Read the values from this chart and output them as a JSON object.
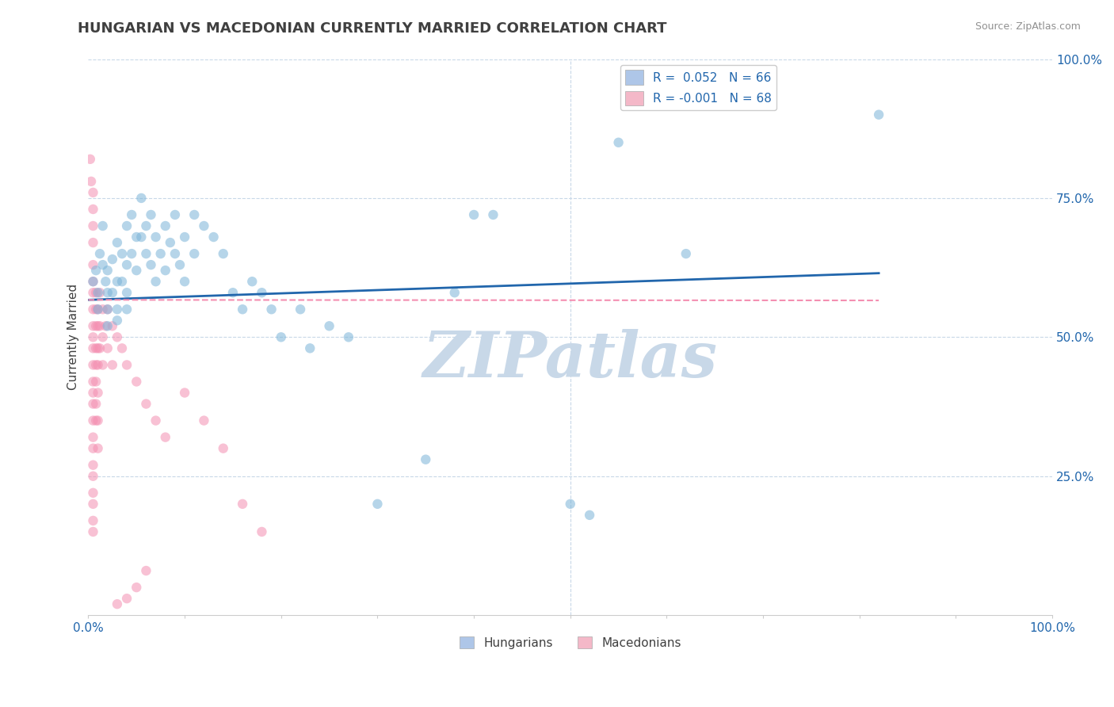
{
  "title": "HUNGARIAN VS MACEDONIAN CURRENTLY MARRIED CORRELATION CHART",
  "source": "Source: ZipAtlas.com",
  "ylabel": "Currently Married",
  "watermark": "ZIPatlas",
  "xlim": [
    0.0,
    1.0
  ],
  "ylim": [
    0.0,
    1.0
  ],
  "xticks": [
    0.0,
    0.1,
    0.2,
    0.3,
    0.4,
    0.5,
    0.6,
    0.7,
    0.8,
    0.9,
    1.0
  ],
  "xticklabels_outer": {
    "0.0": "0.0%",
    "1.0": "100.0%"
  },
  "yticks_right": [
    0.25,
    0.5,
    0.75,
    1.0
  ],
  "yticklabels_right": [
    "25.0%",
    "50.0%",
    "75.0%",
    "100.0%"
  ],
  "blue_scatter": [
    [
      0.005,
      0.6
    ],
    [
      0.008,
      0.62
    ],
    [
      0.01,
      0.58
    ],
    [
      0.01,
      0.55
    ],
    [
      0.012,
      0.65
    ],
    [
      0.015,
      0.63
    ],
    [
      0.015,
      0.7
    ],
    [
      0.018,
      0.6
    ],
    [
      0.02,
      0.58
    ],
    [
      0.02,
      0.62
    ],
    [
      0.02,
      0.55
    ],
    [
      0.02,
      0.52
    ],
    [
      0.025,
      0.64
    ],
    [
      0.025,
      0.58
    ],
    [
      0.03,
      0.67
    ],
    [
      0.03,
      0.6
    ],
    [
      0.03,
      0.55
    ],
    [
      0.03,
      0.53
    ],
    [
      0.035,
      0.65
    ],
    [
      0.035,
      0.6
    ],
    [
      0.04,
      0.7
    ],
    [
      0.04,
      0.63
    ],
    [
      0.04,
      0.58
    ],
    [
      0.04,
      0.55
    ],
    [
      0.045,
      0.72
    ],
    [
      0.045,
      0.65
    ],
    [
      0.05,
      0.68
    ],
    [
      0.05,
      0.62
    ],
    [
      0.055,
      0.75
    ],
    [
      0.055,
      0.68
    ],
    [
      0.06,
      0.7
    ],
    [
      0.06,
      0.65
    ],
    [
      0.065,
      0.72
    ],
    [
      0.065,
      0.63
    ],
    [
      0.07,
      0.68
    ],
    [
      0.07,
      0.6
    ],
    [
      0.075,
      0.65
    ],
    [
      0.08,
      0.7
    ],
    [
      0.08,
      0.62
    ],
    [
      0.085,
      0.67
    ],
    [
      0.09,
      0.72
    ],
    [
      0.09,
      0.65
    ],
    [
      0.095,
      0.63
    ],
    [
      0.1,
      0.68
    ],
    [
      0.1,
      0.6
    ],
    [
      0.11,
      0.72
    ],
    [
      0.11,
      0.65
    ],
    [
      0.12,
      0.7
    ],
    [
      0.13,
      0.68
    ],
    [
      0.14,
      0.65
    ],
    [
      0.15,
      0.58
    ],
    [
      0.16,
      0.55
    ],
    [
      0.17,
      0.6
    ],
    [
      0.18,
      0.58
    ],
    [
      0.19,
      0.55
    ],
    [
      0.2,
      0.5
    ],
    [
      0.22,
      0.55
    ],
    [
      0.23,
      0.48
    ],
    [
      0.25,
      0.52
    ],
    [
      0.27,
      0.5
    ],
    [
      0.3,
      0.2
    ],
    [
      0.35,
      0.28
    ],
    [
      0.38,
      0.58
    ],
    [
      0.4,
      0.72
    ],
    [
      0.42,
      0.72
    ],
    [
      0.5,
      0.2
    ],
    [
      0.52,
      0.18
    ],
    [
      0.55,
      0.85
    ],
    [
      0.62,
      0.65
    ],
    [
      0.82,
      0.9
    ]
  ],
  "pink_scatter": [
    [
      0.002,
      0.82
    ],
    [
      0.003,
      0.78
    ],
    [
      0.005,
      0.76
    ],
    [
      0.005,
      0.73
    ],
    [
      0.005,
      0.7
    ],
    [
      0.005,
      0.67
    ],
    [
      0.005,
      0.63
    ],
    [
      0.005,
      0.6
    ],
    [
      0.005,
      0.58
    ],
    [
      0.005,
      0.55
    ],
    [
      0.005,
      0.52
    ],
    [
      0.005,
      0.5
    ],
    [
      0.005,
      0.48
    ],
    [
      0.005,
      0.45
    ],
    [
      0.005,
      0.42
    ],
    [
      0.005,
      0.4
    ],
    [
      0.005,
      0.38
    ],
    [
      0.005,
      0.35
    ],
    [
      0.005,
      0.32
    ],
    [
      0.005,
      0.3
    ],
    [
      0.005,
      0.27
    ],
    [
      0.005,
      0.25
    ],
    [
      0.005,
      0.22
    ],
    [
      0.005,
      0.2
    ],
    [
      0.005,
      0.17
    ],
    [
      0.005,
      0.15
    ],
    [
      0.008,
      0.58
    ],
    [
      0.008,
      0.55
    ],
    [
      0.008,
      0.52
    ],
    [
      0.008,
      0.48
    ],
    [
      0.008,
      0.45
    ],
    [
      0.008,
      0.42
    ],
    [
      0.008,
      0.38
    ],
    [
      0.008,
      0.35
    ],
    [
      0.01,
      0.55
    ],
    [
      0.01,
      0.52
    ],
    [
      0.01,
      0.48
    ],
    [
      0.01,
      0.45
    ],
    [
      0.01,
      0.4
    ],
    [
      0.01,
      0.35
    ],
    [
      0.01,
      0.3
    ],
    [
      0.012,
      0.58
    ],
    [
      0.012,
      0.52
    ],
    [
      0.012,
      0.48
    ],
    [
      0.015,
      0.55
    ],
    [
      0.015,
      0.5
    ],
    [
      0.015,
      0.45
    ],
    [
      0.018,
      0.52
    ],
    [
      0.02,
      0.55
    ],
    [
      0.02,
      0.48
    ],
    [
      0.025,
      0.52
    ],
    [
      0.025,
      0.45
    ],
    [
      0.03,
      0.5
    ],
    [
      0.035,
      0.48
    ],
    [
      0.04,
      0.45
    ],
    [
      0.05,
      0.42
    ],
    [
      0.06,
      0.38
    ],
    [
      0.07,
      0.35
    ],
    [
      0.08,
      0.32
    ],
    [
      0.1,
      0.4
    ],
    [
      0.12,
      0.35
    ],
    [
      0.14,
      0.3
    ],
    [
      0.16,
      0.2
    ],
    [
      0.18,
      0.15
    ],
    [
      0.06,
      0.08
    ],
    [
      0.05,
      0.05
    ],
    [
      0.04,
      0.03
    ],
    [
      0.03,
      0.02
    ]
  ],
  "blue_line": {
    "x": [
      0.0,
      0.82
    ],
    "y": [
      0.567,
      0.615
    ]
  },
  "pink_line": {
    "x": [
      0.0,
      0.82
    ],
    "y": [
      0.567,
      0.566
    ]
  },
  "blue_color": "#7ab4d8",
  "pink_color": "#f48fb1",
  "blue_line_color": "#2166ac",
  "pink_line_color": "#f48fb1",
  "legend_blue_color": "#aec6e8",
  "legend_pink_color": "#f4b8c8",
  "bg_color": "#ffffff",
  "grid_color": "#c8d8e8",
  "title_color": "#404040",
  "source_color": "#909090",
  "title_fontsize": 13,
  "axis_fontsize": 11,
  "tick_fontsize": 11,
  "scatter_size": 80,
  "scatter_alpha": 0.55,
  "watermark_color": "#c8d8e8",
  "watermark_fontsize": 58
}
